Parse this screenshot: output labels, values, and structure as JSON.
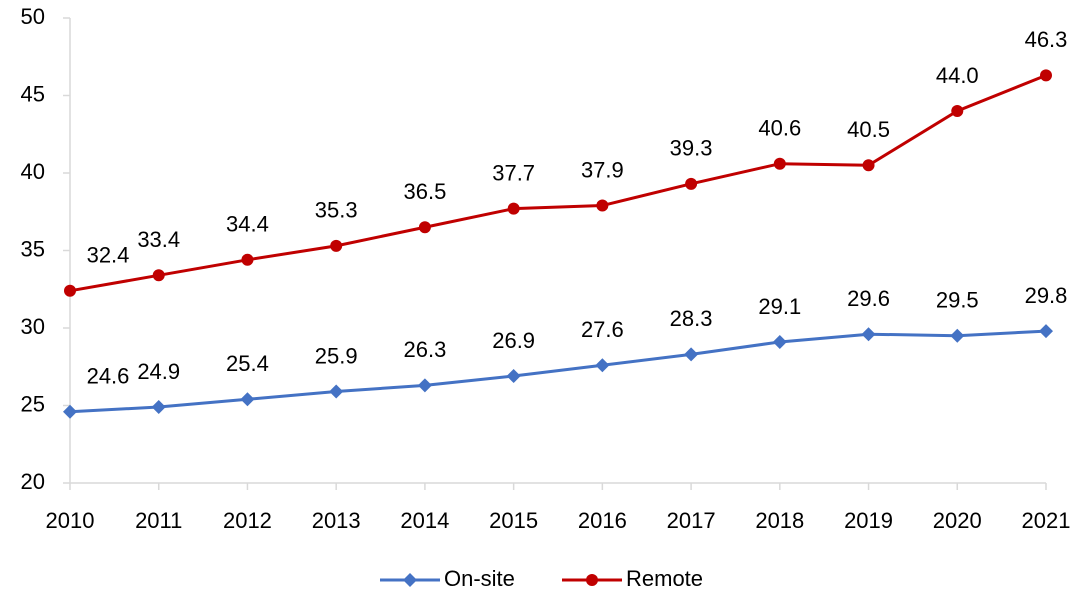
{
  "chart_data": {
    "type": "line",
    "categories": [
      "2010",
      "2011",
      "2012",
      "2013",
      "2014",
      "2015",
      "2016",
      "2017",
      "2018",
      "2019",
      "2020",
      "2021"
    ],
    "series": [
      {
        "name": "On-site",
        "color": "#4472c4",
        "marker": "diamond",
        "values": [
          24.6,
          24.9,
          25.4,
          25.9,
          26.3,
          26.9,
          27.6,
          28.3,
          29.1,
          29.6,
          29.5,
          29.8
        ],
        "value_labels": [
          "24.6",
          "24.9",
          "25.4",
          "25.9",
          "26.3",
          "26.9",
          "27.6",
          "28.3",
          "29.1",
          "29.6",
          "29.5",
          "29.8"
        ]
      },
      {
        "name": "Remote",
        "color": "#c00000",
        "marker": "circle",
        "values": [
          32.4,
          33.4,
          34.4,
          35.3,
          36.5,
          37.7,
          37.9,
          39.3,
          40.6,
          40.5,
          44.0,
          46.3
        ],
        "value_labels": [
          "32.4",
          "33.4",
          "34.4",
          "35.3",
          "36.5",
          "37.7",
          "37.9",
          "39.3",
          "40.6",
          "40.5",
          "44.0",
          "46.3"
        ]
      }
    ],
    "ylim": [
      20,
      50
    ],
    "yticks": [
      20,
      25,
      30,
      35,
      40,
      45,
      50
    ],
    "grid": false,
    "legend": "bottom"
  }
}
